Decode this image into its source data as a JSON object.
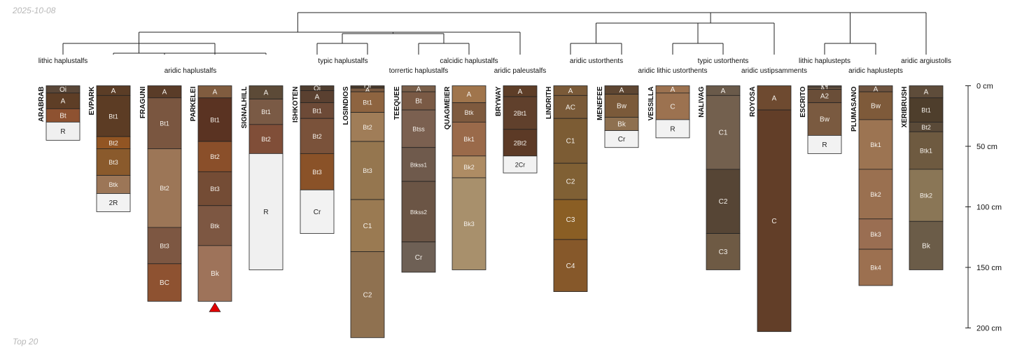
{
  "header": {
    "date": "2025-10-08"
  },
  "footer": {
    "label": "Top 20"
  },
  "depth_axis": {
    "ticks": [
      {
        "depth": 0,
        "label": "0 cm"
      },
      {
        "depth": 50,
        "label": "50 cm"
      },
      {
        "depth": 100,
        "label": "100 cm"
      },
      {
        "depth": 150,
        "label": "150 cm"
      },
      {
        "depth": 200,
        "label": "200 cm"
      }
    ]
  },
  "taxa_labels": [
    {
      "text": "lithic haplustalfs"
    },
    {
      "text": "aridic haplustalfs"
    },
    {
      "text": "typic haplustalfs"
    },
    {
      "text": "calcidic haplustalfs"
    },
    {
      "text": "torrertic haplustalfs"
    },
    {
      "text": "aridic paleustalfs"
    },
    {
      "text": "aridic ustorthents"
    },
    {
      "text": "typic ustorthents"
    },
    {
      "text": "aridic lithic ustorthents"
    },
    {
      "text": "aridic ustipsamments"
    },
    {
      "text": "lithic haplustepts"
    },
    {
      "text": "aridic haplustepts"
    },
    {
      "text": "aridic argiustolls"
    }
  ],
  "profiles": [
    {
      "name": "ARABRAB",
      "truncated": false,
      "horizons": [
        {
          "name": "Oi",
          "top": 0,
          "bottom": 6,
          "color": "#5a4738"
        },
        {
          "name": "A",
          "top": 6,
          "bottom": 19,
          "color": "#5e3e26"
        },
        {
          "name": "Bt",
          "top": 19,
          "bottom": 30,
          "color": "#8e5231"
        },
        {
          "name": "R",
          "top": 30,
          "bottom": 45,
          "color": "#f0f0f0"
        }
      ]
    },
    {
      "name": "EVPARK",
      "truncated": false,
      "horizons": [
        {
          "name": "A",
          "top": 0,
          "bottom": 8,
          "color": "#5b3d26"
        },
        {
          "name": "Bt1",
          "top": 8,
          "bottom": 42,
          "color": "#5c3c24"
        },
        {
          "name": "Bt2",
          "top": 42,
          "bottom": 52,
          "color": "#925523"
        },
        {
          "name": "Bt3",
          "top": 52,
          "bottom": 74,
          "color": "#8a5a2c"
        },
        {
          "name": "Btk",
          "top": 74,
          "bottom": 89,
          "color": "#9c7657"
        },
        {
          "name": "2R",
          "top": 89,
          "bottom": 104,
          "color": "#f2f2f2"
        }
      ]
    },
    {
      "name": "FRAGUNI",
      "truncated": false,
      "horizons": [
        {
          "name": "A",
          "top": 0,
          "bottom": 10,
          "color": "#5a3c28"
        },
        {
          "name": "Bt1",
          "top": 10,
          "bottom": 52,
          "color": "#7a5640"
        },
        {
          "name": "Bt2",
          "top": 52,
          "bottom": 117,
          "color": "#9c7657"
        },
        {
          "name": "Bt3",
          "top": 117,
          "bottom": 147,
          "color": "#7d5742"
        },
        {
          "name": "BC",
          "top": 147,
          "bottom": 178,
          "color": "#8e5231"
        }
      ]
    },
    {
      "name": "PARKELEI",
      "truncated": true,
      "horizons": [
        {
          "name": "A",
          "top": 0,
          "bottom": 10,
          "color": "#805c3f"
        },
        {
          "name": "Bt1",
          "top": 10,
          "bottom": 46,
          "color": "#5a3322"
        },
        {
          "name": "Bt2",
          "top": 46,
          "bottom": 71,
          "color": "#8a4f2a"
        },
        {
          "name": "Bt3",
          "top": 71,
          "bottom": 99,
          "color": "#744c35"
        },
        {
          "name": "Btk",
          "top": 99,
          "bottom": 132,
          "color": "#7d5742"
        },
        {
          "name": "Bk",
          "top": 132,
          "bottom": 178,
          "color": "#9e735a"
        }
      ]
    },
    {
      "name": "SIGNALHILL",
      "truncated": false,
      "horizons": [
        {
          "name": "A",
          "top": 0,
          "bottom": 11,
          "color": "#5c4a37"
        },
        {
          "name": "Bt1",
          "top": 11,
          "bottom": 32,
          "color": "#7a5a45"
        },
        {
          "name": "Bt2",
          "top": 32,
          "bottom": 56,
          "color": "#804e38"
        },
        {
          "name": "R",
          "top": 56,
          "bottom": 152,
          "color": "#f0f0f0"
        }
      ]
    },
    {
      "name": "ISHKOTEN",
      "truncated": false,
      "horizons": [
        {
          "name": "Oi",
          "top": 0,
          "bottom": 4,
          "color": "#4f3e30"
        },
        {
          "name": "A",
          "top": 4,
          "bottom": 14,
          "color": "#5a4030"
        },
        {
          "name": "Bt1",
          "top": 14,
          "bottom": 27,
          "color": "#6d4a37"
        },
        {
          "name": "Bt2",
          "top": 27,
          "bottom": 56,
          "color": "#7a523a"
        },
        {
          "name": "Bt3",
          "top": 56,
          "bottom": 86,
          "color": "#8a5228"
        },
        {
          "name": "Cr",
          "top": 86,
          "bottom": 122,
          "color": "#f2f2f2"
        }
      ]
    },
    {
      "name": "LOSINDIOS",
      "truncated": false,
      "horizons": [
        {
          "name": "Oi",
          "top": 0,
          "bottom": 2,
          "color": "#4a3b2c"
        },
        {
          "name": "A",
          "top": 2,
          "bottom": 5,
          "color": "#7a5a40"
        },
        {
          "name": "Bt1",
          "top": 5,
          "bottom": 22,
          "color": "#8e6440"
        },
        {
          "name": "Bt2",
          "top": 22,
          "bottom": 46,
          "color": "#a07d58"
        },
        {
          "name": "Bt3",
          "top": 46,
          "bottom": 94,
          "color": "#95764f"
        },
        {
          "name": "C1",
          "top": 94,
          "bottom": 137,
          "color": "#9a7a52"
        },
        {
          "name": "C2",
          "top": 137,
          "bottom": 208,
          "color": "#8f7150"
        }
      ]
    },
    {
      "name": "TEEQUEE",
      "truncated": false,
      "horizons": [
        {
          "name": "A",
          "top": 0,
          "bottom": 5,
          "color": "#7a5f4a"
        },
        {
          "name": "Bt",
          "top": 5,
          "bottom": 20,
          "color": "#7a5a45"
        },
        {
          "name": "Btss",
          "top": 20,
          "bottom": 51,
          "color": "#7b6050"
        },
        {
          "name": "Btkss1",
          "top": 51,
          "bottom": 79,
          "color": "#6f5a4c"
        },
        {
          "name": "Btkss2",
          "top": 79,
          "bottom": 129,
          "color": "#6b5545"
        },
        {
          "name": "Cr",
          "top": 129,
          "bottom": 154,
          "color": "#6e6055"
        }
      ]
    },
    {
      "name": "QUAGMEIER",
      "truncated": false,
      "horizons": [
        {
          "name": "A",
          "top": 0,
          "bottom": 14,
          "color": "#a0754c"
        },
        {
          "name": "Btk",
          "top": 14,
          "bottom": 30,
          "color": "#7e5a3e"
        },
        {
          "name": "Bk1",
          "top": 30,
          "bottom": 58,
          "color": "#9a6a4a"
        },
        {
          "name": "Bk2",
          "top": 58,
          "bottom": 76,
          "color": "#ae8c64"
        },
        {
          "name": "Bk3",
          "top": 76,
          "bottom": 152,
          "color": "#a8906c"
        }
      ]
    },
    {
      "name": "BRYWAY",
      "truncated": false,
      "horizons": [
        {
          "name": "A",
          "top": 0,
          "bottom": 9,
          "color": "#5e3e28"
        },
        {
          "name": "2Bt1",
          "top": 9,
          "bottom": 36,
          "color": "#60402c"
        },
        {
          "name": "2Bt2",
          "top": 36,
          "bottom": 58,
          "color": "#5c3a26"
        },
        {
          "name": "2Cr",
          "top": 58,
          "bottom": 72,
          "color": "#f2f2f2"
        }
      ]
    },
    {
      "name": "LINDRITH",
      "truncated": false,
      "horizons": [
        {
          "name": "A",
          "top": 0,
          "bottom": 8,
          "color": "#7a5a38"
        },
        {
          "name": "AC",
          "top": 8,
          "bottom": 27,
          "color": "#7a5a38"
        },
        {
          "name": "C1",
          "top": 27,
          "bottom": 64,
          "color": "#7c5c34"
        },
        {
          "name": "C2",
          "top": 64,
          "bottom": 94,
          "color": "#806034"
        },
        {
          "name": "C3",
          "top": 94,
          "bottom": 127,
          "color": "#8a5e24"
        },
        {
          "name": "C4",
          "top": 127,
          "bottom": 170,
          "color": "#86582a"
        }
      ]
    },
    {
      "name": "MENEFEE",
      "truncated": false,
      "horizons": [
        {
          "name": "A",
          "top": 0,
          "bottom": 7,
          "color": "#5e4632"
        },
        {
          "name": "Bw",
          "top": 7,
          "bottom": 26,
          "color": "#7b5a3a"
        },
        {
          "name": "Bk",
          "top": 26,
          "bottom": 37,
          "color": "#8e7050"
        },
        {
          "name": "Cr",
          "top": 37,
          "bottom": 51,
          "color": "#f2f2f2"
        }
      ]
    },
    {
      "name": "VESSILLA",
      "truncated": false,
      "horizons": [
        {
          "name": "A",
          "top": 0,
          "bottom": 6,
          "color": "#9c7250"
        },
        {
          "name": "C",
          "top": 6,
          "bottom": 28,
          "color": "#9c7250"
        },
        {
          "name": "R",
          "top": 28,
          "bottom": 43,
          "color": "#f2f2f2"
        }
      ]
    },
    {
      "name": "NALIVAG",
      "truncated": false,
      "horizons": [
        {
          "name": "A",
          "top": 0,
          "bottom": 8,
          "color": "#6a5a4a"
        },
        {
          "name": "C1",
          "top": 8,
          "bottom": 69,
          "color": "#73604e"
        },
        {
          "name": "C2",
          "top": 69,
          "bottom": 122,
          "color": "#564535"
        },
        {
          "name": "C3",
          "top": 122,
          "bottom": 152,
          "color": "#6e5a44"
        }
      ]
    },
    {
      "name": "ROYOSA",
      "truncated": false,
      "horizons": [
        {
          "name": "A",
          "top": 0,
          "bottom": 20,
          "color": "#6e4a30"
        },
        {
          "name": "C",
          "top": 20,
          "bottom": 203,
          "color": "#623e28"
        }
      ]
    },
    {
      "name": "ESCRITO",
      "truncated": false,
      "horizons": [
        {
          "name": "Oi",
          "top": 0,
          "bottom": 1,
          "color": "#6a5644"
        },
        {
          "name": "A1",
          "top": 1,
          "bottom": 3,
          "color": "#6a5644"
        },
        {
          "name": "A2",
          "top": 3,
          "bottom": 14,
          "color": "#6a4e38"
        },
        {
          "name": "Bw",
          "top": 14,
          "bottom": 41,
          "color": "#7a5a40"
        },
        {
          "name": "R",
          "top": 41,
          "bottom": 56,
          "color": "#f2f2f2"
        }
      ]
    },
    {
      "name": "PLUMASANO",
      "truncated": false,
      "horizons": [
        {
          "name": "A",
          "top": 0,
          "bottom": 5,
          "color": "#6e5440"
        },
        {
          "name": "Bw",
          "top": 5,
          "bottom": 28,
          "color": "#7e5a3a"
        },
        {
          "name": "Bk1",
          "top": 28,
          "bottom": 69,
          "color": "#9c7452"
        },
        {
          "name": "Bk2",
          "top": 69,
          "bottom": 110,
          "color": "#9a7050"
        },
        {
          "name": "Bk3",
          "top": 110,
          "bottom": 135,
          "color": "#9a6e52"
        },
        {
          "name": "Bk4",
          "top": 135,
          "bottom": 165,
          "color": "#9c7050"
        }
      ]
    },
    {
      "name": "XERIBRUSH",
      "truncated": false,
      "horizons": [
        {
          "name": "A",
          "top": 0,
          "bottom": 10,
          "color": "#5e4c3a"
        },
        {
          "name": "Bt1",
          "top": 10,
          "bottom": 30,
          "color": "#4e3e2c"
        },
        {
          "name": "Bt2",
          "top": 30,
          "bottom": 38,
          "color": "#5a4a38"
        },
        {
          "name": "Btk1",
          "top": 38,
          "bottom": 69,
          "color": "#6e5a40"
        },
        {
          "name": "Btk2",
          "top": 69,
          "bottom": 112,
          "color": "#8a7656"
        },
        {
          "name": "Bk",
          "top": 112,
          "bottom": 152,
          "color": "#6b5c48"
        }
      ]
    }
  ]
}
